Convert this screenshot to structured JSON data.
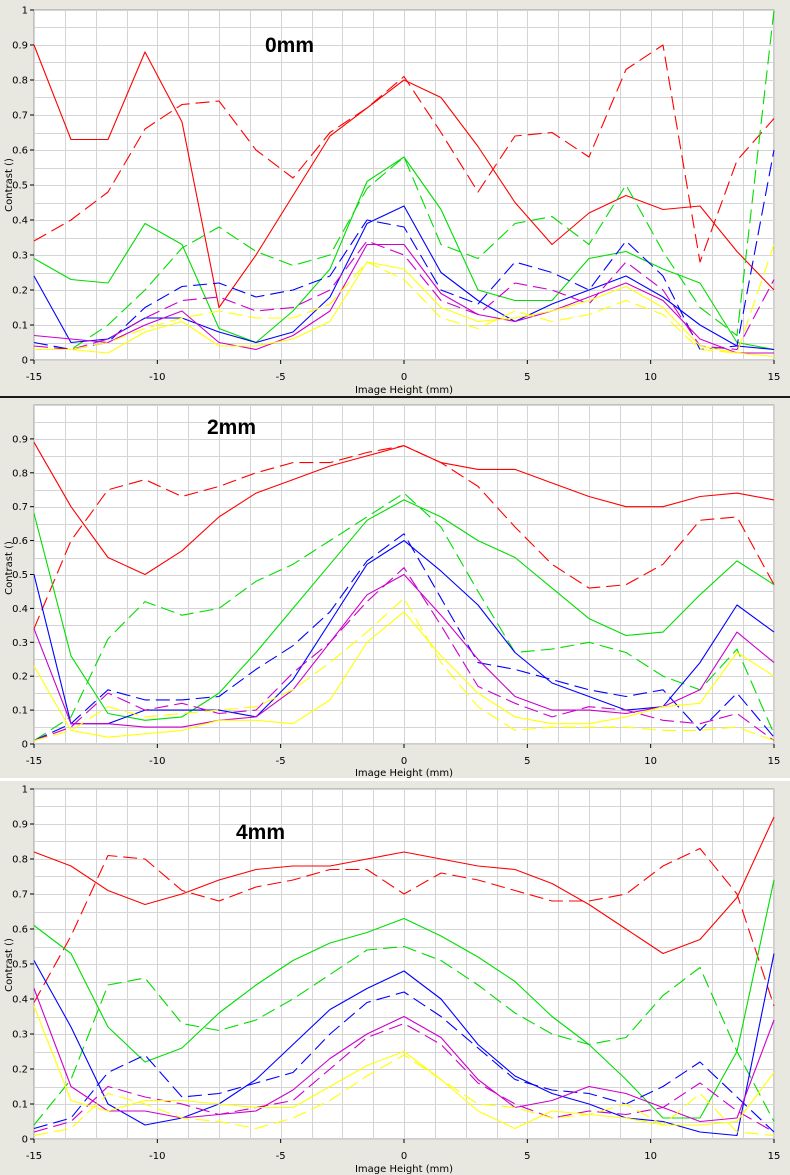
{
  "chart_data": [
    {
      "type": "line",
      "title": "0mm",
      "xlabel": "Image Height (mm)",
      "ylabel": "Contrast ()",
      "xlim": [
        -15,
        15
      ],
      "ylim": [
        0,
        1
      ],
      "xticks": [
        "-15",
        "-10",
        "-5",
        "0",
        "5",
        "10",
        "15"
      ],
      "yticks": [
        "0",
        "0.1",
        "0.2",
        "0.3",
        "0.4",
        "0.5",
        "0.6",
        "0.7",
        "0.8",
        "0.9",
        "1"
      ],
      "grid": true,
      "x": [
        -15,
        -13.5,
        -12,
        -10.5,
        -9,
        -7.5,
        -6,
        -4.5,
        -3,
        -1.5,
        0,
        1.5,
        3,
        4.5,
        6,
        7.5,
        9,
        10.5,
        12,
        13.5,
        15
      ],
      "series": [
        {
          "color": "#ff0000",
          "dash": false,
          "values": [
            0.9,
            0.63,
            0.63,
            0.88,
            0.68,
            0.15,
            0.3,
            0.47,
            0.64,
            0.72,
            0.8,
            0.75,
            0.61,
            0.45,
            0.33,
            0.42,
            0.47,
            0.43,
            0.44,
            0.31,
            0.2
          ]
        },
        {
          "color": "#ff0000",
          "dash": true,
          "values": [
            0.34,
            0.4,
            0.48,
            0.66,
            0.73,
            0.74,
            0.6,
            0.52,
            0.65,
            0.72,
            0.81,
            0.65,
            0.48,
            0.64,
            0.65,
            0.58,
            0.83,
            0.9,
            0.28,
            0.57,
            0.69
          ]
        },
        {
          "color": "#00dd00",
          "dash": false,
          "values": [
            0.29,
            0.23,
            0.22,
            0.39,
            0.33,
            0.09,
            0.05,
            0.14,
            0.26,
            0.51,
            0.58,
            0.43,
            0.2,
            0.17,
            0.17,
            0.29,
            0.31,
            0.26,
            0.22,
            0.05,
            0.03
          ]
        },
        {
          "color": "#00dd00",
          "dash": true,
          "values": [
            0.03,
            0.03,
            0.1,
            0.2,
            0.32,
            0.38,
            0.31,
            0.27,
            0.3,
            0.49,
            0.58,
            0.33,
            0.29,
            0.39,
            0.41,
            0.33,
            0.5,
            0.31,
            0.15,
            0.07,
            1.0
          ]
        },
        {
          "color": "#0000ff",
          "dash": false,
          "values": [
            0.24,
            0.05,
            0.06,
            0.12,
            0.12,
            0.08,
            0.05,
            0.08,
            0.18,
            0.39,
            0.44,
            0.25,
            0.17,
            0.11,
            0.16,
            0.2,
            0.24,
            0.18,
            0.1,
            0.04,
            0.03
          ]
        },
        {
          "color": "#0000ff",
          "dash": true,
          "values": [
            0.05,
            0.03,
            0.05,
            0.15,
            0.21,
            0.22,
            0.18,
            0.2,
            0.24,
            0.4,
            0.38,
            0.2,
            0.16,
            0.28,
            0.25,
            0.2,
            0.34,
            0.24,
            0.03,
            0.04,
            0.6
          ]
        },
        {
          "color": "#cc00cc",
          "dash": false,
          "values": [
            0.07,
            0.06,
            0.05,
            0.1,
            0.14,
            0.05,
            0.03,
            0.07,
            0.14,
            0.33,
            0.33,
            0.19,
            0.13,
            0.11,
            0.14,
            0.18,
            0.22,
            0.17,
            0.06,
            0.02,
            0.02
          ]
        },
        {
          "color": "#cc00cc",
          "dash": true,
          "values": [
            0.04,
            0.03,
            0.06,
            0.12,
            0.17,
            0.18,
            0.14,
            0.15,
            0.2,
            0.34,
            0.3,
            0.17,
            0.13,
            0.22,
            0.2,
            0.16,
            0.28,
            0.2,
            0.04,
            0.03,
            0.23
          ]
        },
        {
          "color": "#ffff00",
          "dash": false,
          "values": [
            0.03,
            0.03,
            0.02,
            0.08,
            0.11,
            0.04,
            0.04,
            0.06,
            0.11,
            0.28,
            0.26,
            0.15,
            0.11,
            0.12,
            0.14,
            0.17,
            0.21,
            0.15,
            0.04,
            0.02,
            0.01
          ]
        },
        {
          "color": "#ffff00",
          "dash": true,
          "values": [
            0.03,
            0.03,
            0.05,
            0.09,
            0.12,
            0.14,
            0.12,
            0.12,
            0.16,
            0.28,
            0.23,
            0.12,
            0.09,
            0.14,
            0.11,
            0.13,
            0.17,
            0.13,
            0.03,
            0.02,
            0.33
          ]
        }
      ]
    },
    {
      "type": "line",
      "title": "2mm",
      "xlabel": "Image Height (mm)",
      "ylabel": "Contrast ()",
      "xlim": [
        -15,
        15
      ],
      "ylim": [
        0,
        1
      ],
      "xticks": [
        "-15",
        "-10",
        "-5",
        "0",
        "5",
        "10",
        "15"
      ],
      "yticks": [
        "0",
        "0.1",
        "0.2",
        "0.3",
        "0.4",
        "0.5",
        "0.6",
        "0.7",
        "0.8",
        "0.9"
      ],
      "grid": true,
      "x": [
        -15,
        -13.5,
        -12,
        -10.5,
        -9,
        -7.5,
        -6,
        -4.5,
        -3,
        -1.5,
        0,
        1.5,
        3,
        4.5,
        6,
        7.5,
        9,
        10.5,
        12,
        13.5,
        15
      ],
      "series": [
        {
          "color": "#ff0000",
          "dash": false,
          "values": [
            0.89,
            0.7,
            0.55,
            0.5,
            0.57,
            0.67,
            0.74,
            0.78,
            0.82,
            0.85,
            0.88,
            0.83,
            0.81,
            0.81,
            0.77,
            0.73,
            0.7,
            0.7,
            0.73,
            0.74,
            0.72
          ]
        },
        {
          "color": "#ff0000",
          "dash": true,
          "values": [
            0.34,
            0.6,
            0.75,
            0.78,
            0.73,
            0.76,
            0.8,
            0.83,
            0.83,
            0.86,
            0.88,
            0.83,
            0.76,
            0.64,
            0.53,
            0.46,
            0.47,
            0.53,
            0.66,
            0.67,
            0.47
          ]
        },
        {
          "color": "#00dd00",
          "dash": false,
          "values": [
            0.68,
            0.26,
            0.09,
            0.07,
            0.08,
            0.15,
            0.27,
            0.4,
            0.53,
            0.66,
            0.72,
            0.67,
            0.6,
            0.55,
            0.46,
            0.37,
            0.32,
            0.33,
            0.44,
            0.54,
            0.47
          ]
        },
        {
          "color": "#00dd00",
          "dash": true,
          "values": [
            0.01,
            0.08,
            0.31,
            0.42,
            0.38,
            0.4,
            0.48,
            0.53,
            0.6,
            0.67,
            0.74,
            0.64,
            0.45,
            0.27,
            0.28,
            0.3,
            0.27,
            0.2,
            0.16,
            0.28,
            0.03
          ]
        },
        {
          "color": "#0000ff",
          "dash": false,
          "values": [
            0.5,
            0.06,
            0.06,
            0.1,
            0.1,
            0.1,
            0.08,
            0.19,
            0.36,
            0.53,
            0.6,
            0.51,
            0.41,
            0.27,
            0.18,
            0.14,
            0.1,
            0.11,
            0.24,
            0.41,
            0.33
          ]
        },
        {
          "color": "#0000ff",
          "dash": true,
          "values": [
            0.01,
            0.06,
            0.16,
            0.13,
            0.13,
            0.14,
            0.22,
            0.29,
            0.39,
            0.54,
            0.62,
            0.43,
            0.24,
            0.22,
            0.19,
            0.16,
            0.14,
            0.16,
            0.04,
            0.15,
            0.02
          ]
        },
        {
          "color": "#cc00cc",
          "dash": false,
          "values": [
            0.34,
            0.06,
            0.06,
            0.05,
            0.05,
            0.07,
            0.08,
            0.16,
            0.3,
            0.44,
            0.5,
            0.38,
            0.25,
            0.14,
            0.1,
            0.1,
            0.09,
            0.11,
            0.16,
            0.33,
            0.24
          ]
        },
        {
          "color": "#cc00cc",
          "dash": true,
          "values": [
            0.01,
            0.05,
            0.15,
            0.1,
            0.12,
            0.09,
            0.1,
            0.21,
            0.3,
            0.42,
            0.52,
            0.35,
            0.17,
            0.12,
            0.08,
            0.11,
            0.1,
            0.07,
            0.06,
            0.09,
            0.01
          ]
        },
        {
          "color": "#ffff00",
          "dash": false,
          "values": [
            0.23,
            0.04,
            0.02,
            0.03,
            0.04,
            0.07,
            0.07,
            0.06,
            0.13,
            0.3,
            0.39,
            0.26,
            0.15,
            0.08,
            0.06,
            0.06,
            0.08,
            0.11,
            0.12,
            0.27,
            0.2
          ]
        },
        {
          "color": "#ffff00",
          "dash": true,
          "values": [
            0.01,
            0.04,
            0.11,
            0.08,
            0.09,
            0.1,
            0.11,
            0.16,
            0.24,
            0.33,
            0.43,
            0.24,
            0.11,
            0.04,
            0.05,
            0.05,
            0.05,
            0.04,
            0.04,
            0.05,
            0.01
          ]
        }
      ]
    },
    {
      "type": "line",
      "title": "4mm",
      "xlabel": "Image Height (mm)",
      "ylabel": "Contrast ()",
      "xlim": [
        -15,
        15
      ],
      "ylim": [
        0,
        1
      ],
      "xticks": [
        "-15",
        "-10",
        "-5",
        "0",
        "5",
        "10",
        "15"
      ],
      "yticks": [
        "0",
        "0.1",
        "0.2",
        "0.3",
        "0.4",
        "0.5",
        "0.6",
        "0.7",
        "0.8",
        "0.9",
        "1"
      ],
      "grid": true,
      "x": [
        -15,
        -13.5,
        -12,
        -10.5,
        -9,
        -7.5,
        -6,
        -4.5,
        -3,
        -1.5,
        0,
        1.5,
        3,
        4.5,
        6,
        7.5,
        9,
        10.5,
        12,
        13.5,
        15
      ],
      "series": [
        {
          "color": "#ff0000",
          "dash": false,
          "values": [
            0.82,
            0.78,
            0.71,
            0.67,
            0.7,
            0.74,
            0.77,
            0.78,
            0.78,
            0.8,
            0.82,
            0.8,
            0.78,
            0.77,
            0.73,
            0.67,
            0.6,
            0.53,
            0.57,
            0.69,
            0.92
          ]
        },
        {
          "color": "#ff0000",
          "dash": true,
          "values": [
            0.39,
            0.58,
            0.81,
            0.8,
            0.71,
            0.68,
            0.72,
            0.74,
            0.77,
            0.77,
            0.7,
            0.76,
            0.74,
            0.71,
            0.68,
            0.68,
            0.7,
            0.78,
            0.83,
            0.7,
            0.38
          ]
        },
        {
          "color": "#00dd00",
          "dash": false,
          "values": [
            0.61,
            0.53,
            0.32,
            0.22,
            0.26,
            0.36,
            0.44,
            0.51,
            0.56,
            0.59,
            0.63,
            0.58,
            0.52,
            0.45,
            0.35,
            0.27,
            0.17,
            0.06,
            0.06,
            0.25,
            0.74
          ]
        },
        {
          "color": "#00dd00",
          "dash": true,
          "values": [
            0.04,
            0.17,
            0.44,
            0.46,
            0.33,
            0.31,
            0.34,
            0.4,
            0.47,
            0.54,
            0.55,
            0.51,
            0.44,
            0.36,
            0.3,
            0.27,
            0.29,
            0.41,
            0.49,
            0.25,
            0.05
          ]
        },
        {
          "color": "#0000ff",
          "dash": false,
          "values": [
            0.51,
            0.32,
            0.1,
            0.04,
            0.06,
            0.1,
            0.17,
            0.27,
            0.37,
            0.43,
            0.48,
            0.4,
            0.27,
            0.18,
            0.13,
            0.1,
            0.06,
            0.05,
            0.02,
            0.01,
            0.53
          ]
        },
        {
          "color": "#0000ff",
          "dash": true,
          "values": [
            0.03,
            0.06,
            0.19,
            0.24,
            0.12,
            0.13,
            0.16,
            0.19,
            0.3,
            0.39,
            0.42,
            0.35,
            0.26,
            0.17,
            0.14,
            0.13,
            0.1,
            0.15,
            0.22,
            0.12,
            0.02
          ]
        },
        {
          "color": "#cc00cc",
          "dash": false,
          "values": [
            0.43,
            0.15,
            0.08,
            0.08,
            0.06,
            0.07,
            0.08,
            0.14,
            0.23,
            0.3,
            0.35,
            0.29,
            0.17,
            0.09,
            0.11,
            0.15,
            0.13,
            0.09,
            0.05,
            0.06,
            0.34
          ]
        },
        {
          "color": "#cc00cc",
          "dash": true,
          "values": [
            0.02,
            0.05,
            0.15,
            0.12,
            0.1,
            0.07,
            0.09,
            0.11,
            0.2,
            0.29,
            0.33,
            0.27,
            0.16,
            0.1,
            0.06,
            0.08,
            0.07,
            0.09,
            0.16,
            0.08,
            0.02
          ]
        },
        {
          "color": "#ffff00",
          "dash": false,
          "values": [
            0.38,
            0.11,
            0.08,
            0.11,
            0.11,
            0.1,
            0.09,
            0.09,
            0.15,
            0.21,
            0.25,
            0.17,
            0.08,
            0.03,
            0.08,
            0.07,
            0.06,
            0.04,
            0.04,
            0.05,
            0.19
          ]
        },
        {
          "color": "#ffff00",
          "dash": true,
          "values": [
            0.01,
            0.03,
            0.13,
            0.1,
            0.06,
            0.05,
            0.03,
            0.06,
            0.11,
            0.18,
            0.24,
            0.17,
            0.1,
            0.09,
            0.06,
            0.07,
            0.1,
            0.04,
            0.13,
            0.02,
            0.01
          ]
        }
      ]
    }
  ]
}
